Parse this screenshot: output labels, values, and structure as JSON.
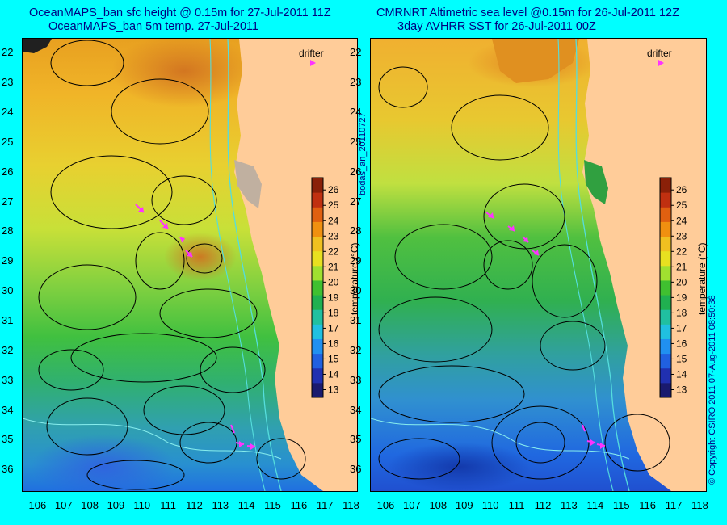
{
  "left_panel": {
    "title_line1": "OceanMAPS_ban sfc height @ 0.15m for 27-Jul-2011 11Z",
    "title_line2": "OceanMAPS_ban 5m temp. 27-Jul-2011",
    "drifter_label": "drifter"
  },
  "right_panel": {
    "title_line1": "CMRNRT Altimetric sea level  @0.15m  for 26-Jul-2011 12Z",
    "title_line2": "3day AVHRR SST for 26-Jul-2011 00Z",
    "drifter_label": "drifter"
  },
  "map_extent": {
    "lon_min": 105.4,
    "lon_max": 118.2,
    "lat_top": 21.5,
    "lat_bottom": 36.7
  },
  "latitude_labels": [
    "22",
    "23",
    "24",
    "25",
    "26",
    "27",
    "28",
    "29",
    "30",
    "31",
    "32",
    "33",
    "34",
    "35",
    "36"
  ],
  "longitude_labels": [
    "106",
    "107",
    "108",
    "109",
    "110",
    "111",
    "112",
    "113",
    "114",
    "115",
    "116",
    "117",
    "118"
  ],
  "colorbar": {
    "title": "temperature (°C)",
    "ticks": [
      "13",
      "14",
      "15",
      "16",
      "17",
      "18",
      "19",
      "20",
      "21",
      "22",
      "23",
      "24",
      "25",
      "26"
    ],
    "range": [
      12.5,
      26.8
    ]
  },
  "side_labels": {
    "run_id": "bodas_an_20110727",
    "copyright": "© Copyright CSIRO 2011   07-Aug-2011 08:50:38"
  },
  "colors": {
    "background": "#00ffff",
    "title": "#000080",
    "land": "#ffcc99",
    "drifter": "#ff33ff",
    "contour": "#000000",
    "isobath": "#55dddd"
  }
}
